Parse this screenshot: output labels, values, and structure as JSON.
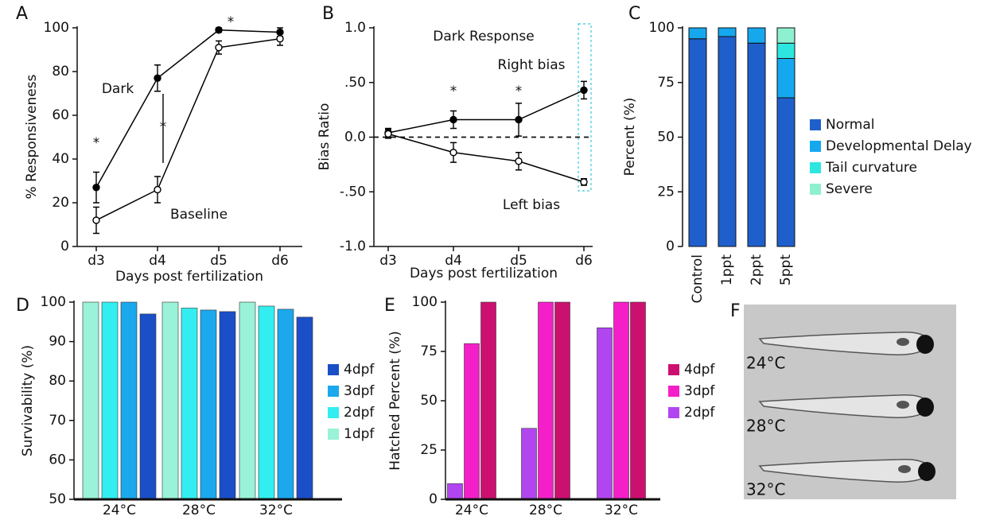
{
  "chart_data": [
    {
      "type": "line",
      "panel": "A",
      "xlabel": "Days post fertilization",
      "ylabel": "% Responsiveness",
      "categories": [
        "d3",
        "d4",
        "d5",
        "d6"
      ],
      "ylim": [
        0,
        100
      ],
      "yticks": [
        0,
        20,
        40,
        60,
        80,
        100
      ],
      "series": [
        {
          "name": "Dark",
          "color": "#000000",
          "marker_fill": "#000000",
          "values": [
            27,
            77,
            99,
            98
          ],
          "errors": [
            7,
            6,
            1,
            2
          ]
        },
        {
          "name": "Baseline",
          "color": "#000000",
          "marker_fill": "#ffffff",
          "values": [
            12,
            26,
            91,
            95
          ],
          "errors": [
            6,
            6,
            3,
            3
          ]
        }
      ],
      "significance": [
        "*",
        "*",
        "*",
        null
      ]
    },
    {
      "type": "line",
      "panel": "B",
      "title": "Dark Response",
      "xlabel": "Days post fertilization",
      "ylabel": "Bias Ratio",
      "categories": [
        "d3",
        "d4",
        "d5",
        "d6"
      ],
      "ylim": [
        -1,
        1
      ],
      "yticks": [
        {
          "value": -1,
          "label": "-1.0"
        },
        {
          "value": -0.5,
          "label": "-.50"
        },
        {
          "value": 0,
          "label": "0.0"
        },
        {
          "value": 0.5,
          "label": ".50"
        },
        {
          "value": 1,
          "label": "1.0"
        }
      ],
      "reference_line": 0,
      "series": [
        {
          "name": "Right bias",
          "color": "#000000",
          "marker_fill": "#000000",
          "values": [
            0.04,
            0.16,
            0.16,
            0.43
          ],
          "errors": [
            0.04,
            0.08,
            0.15,
            0.08
          ]
        },
        {
          "name": "Left bias",
          "color": "#000000",
          "marker_fill": "#ffffff",
          "values": [
            0.03,
            -0.14,
            -0.22,
            -0.41
          ],
          "errors": [
            0.04,
            0.09,
            0.08,
            0.03
          ]
        }
      ],
      "significance": [
        null,
        "*",
        "*",
        null
      ]
    },
    {
      "type": "stacked_bar",
      "panel": "C",
      "ylabel": "Percent (%)",
      "categories": [
        "Control",
        "1ppt",
        "2ppt",
        "5ppt"
      ],
      "ylim": [
        0,
        100
      ],
      "yticks": [
        0,
        25,
        50,
        75,
        100
      ],
      "series": [
        {
          "name": "Normal",
          "color": "#1f5fcc",
          "values": [
            95,
            96,
            93,
            68
          ]
        },
        {
          "name": "Developmental Delay",
          "color": "#16a8ee",
          "values": [
            5,
            4,
            7,
            18
          ]
        },
        {
          "name": "Tail curvature",
          "color": "#2ee6e0",
          "values": [
            0,
            0,
            0,
            7
          ]
        },
        {
          "name": "Severe",
          "color": "#8ef0d0",
          "values": [
            0,
            0,
            0,
            7
          ]
        }
      ]
    },
    {
      "type": "grouped_bar",
      "panel": "D",
      "ylabel": "Survivability (%)",
      "categories": [
        "24°C",
        "28°C",
        "32°C"
      ],
      "ylim": [
        50,
        100
      ],
      "yticks": [
        50,
        60,
        70,
        80,
        90,
        100
      ],
      "series": [
        {
          "name": "1dpf",
          "color": "#9af2d8",
          "values": [
            100,
            100,
            100
          ]
        },
        {
          "name": "2dpf",
          "color": "#33eef0",
          "values": [
            100,
            98.5,
            99
          ]
        },
        {
          "name": "3dpf",
          "color": "#1ba8ec",
          "values": [
            100,
            98,
            98.2
          ]
        },
        {
          "name": "4dpf",
          "color": "#1a4fc8",
          "values": [
            97,
            97.6,
            96.2
          ]
        }
      ]
    },
    {
      "type": "grouped_bar",
      "panel": "E",
      "ylabel": "Hatched Percent (%)",
      "categories": [
        "24°C",
        "28°C",
        "32°C"
      ],
      "ylim": [
        0,
        100
      ],
      "yticks": [
        0,
        25,
        50,
        75,
        100
      ],
      "series": [
        {
          "name": "2dpf",
          "color": "#b146f0",
          "values": [
            8,
            36,
            87
          ]
        },
        {
          "name": "3dpf",
          "color": "#f51fc9",
          "values": [
            79,
            100,
            100
          ]
        },
        {
          "name": "4dpf",
          "color": "#cc1070",
          "values": [
            100,
            100,
            100
          ]
        }
      ]
    },
    {
      "type": "image",
      "panel": "F",
      "labels": [
        "24°C",
        "28°C",
        "32°C"
      ]
    }
  ]
}
